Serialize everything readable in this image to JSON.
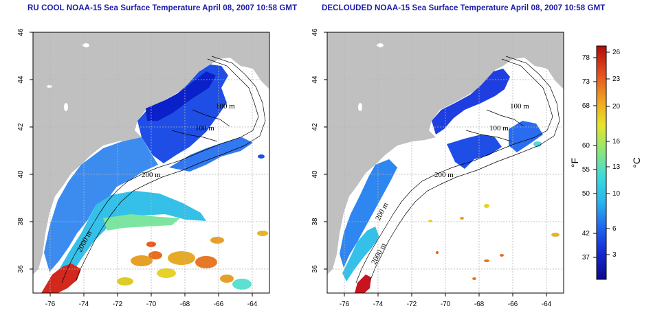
{
  "panels": [
    {
      "title": "RU COOL NOAA-15 Sea Surface Temperature April 08, 2007 10:58 GMT",
      "contour_labels": [
        "100 m",
        "100 m",
        "200 m",
        "2000 m"
      ]
    },
    {
      "title": "DECLOUDED NOAA-15 Sea Surface Temperature April 08, 2007 10:58 GMT",
      "contour_labels": [
        "100 m",
        "100 m",
        "200 m",
        "200 m",
        "2000 m"
      ]
    }
  ],
  "axes": {
    "x_ticks": [
      "-76",
      "-74",
      "-72",
      "-70",
      "-68",
      "-66",
      "-64"
    ],
    "y_ticks": [
      "36",
      "38",
      "40",
      "42",
      "44",
      "46"
    ],
    "lon_range": [
      -77,
      -63
    ],
    "lat_range": [
      35,
      46
    ]
  },
  "colorbar": {
    "fahrenheit_label": "°F",
    "celsius_label": "°C",
    "fahrenheit_ticks": [
      "78",
      "73",
      "68",
      "60",
      "55",
      "50",
      "42",
      "37"
    ],
    "celsius_ticks": [
      "26",
      "23",
      "20",
      "16",
      "13",
      "10",
      "6",
      "3"
    ],
    "colors": [
      "#0a0a8c",
      "#1428d2",
      "#1e64f0",
      "#28b4f0",
      "#3cdcdc",
      "#8ce678",
      "#e6e628",
      "#f0a01e",
      "#e6501e",
      "#b40a0a"
    ]
  },
  "colors": {
    "land": "#c0c0c0",
    "ocean": "#ffffff",
    "grid": "#b4b4b4",
    "title": "#1a1aa8"
  }
}
